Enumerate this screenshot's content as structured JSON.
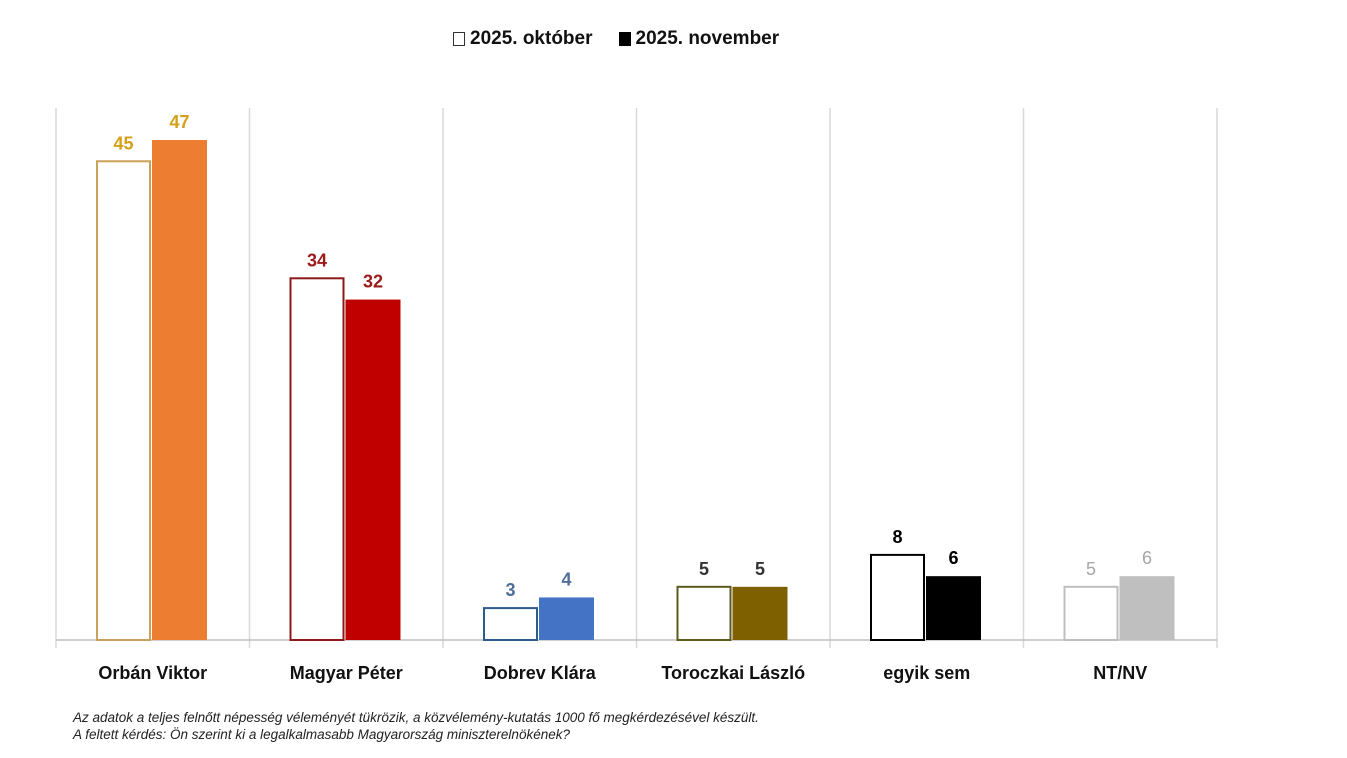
{
  "chart_data": {
    "type": "bar",
    "title": "",
    "xlabel": "",
    "ylabel": "",
    "ylim": [
      0,
      47
    ],
    "grid": false,
    "legend_position": "top-center",
    "categories": [
      "Orbán Viktor",
      "Magyar Péter",
      "Dobrev Klára",
      "Toroczkai László",
      "egyik sem",
      "NT/NV"
    ],
    "series": [
      {
        "name": "2025. október",
        "values": [
          45,
          34,
          3,
          5,
          8,
          5
        ]
      },
      {
        "name": "2025. november",
        "values": [
          47,
          32,
          4,
          5,
          6,
          6
        ]
      }
    ],
    "colors": {
      "fill_nov": [
        "#ED7D31",
        "#C00000",
        "#4472C4",
        "#7F6000",
        "#000000",
        "#BFBFBF"
      ],
      "outline_oct": [
        "#C9A15A",
        "#8B1A1A",
        "#2E5C8A",
        "#5C5A1E",
        "#000000",
        "#BFBFBF"
      ],
      "labels": [
        "#D4A017",
        "#9B1B1B",
        "#4F6E9A",
        "#333333",
        "#000000",
        "#A6A6A6"
      ]
    }
  },
  "legend": {
    "oct": "2025. október",
    "nov": "2025. november"
  },
  "notes": {
    "line1": "Az adatok a teljes felnőtt népesség véleményét tükrözik, a közvélemény-kutatás 1000 fő megkérdezésével készült.",
    "line2": "A feltett kérdés: Ön szerint ki a legalkalmasabb Magyarország miniszterelnökének?"
  }
}
